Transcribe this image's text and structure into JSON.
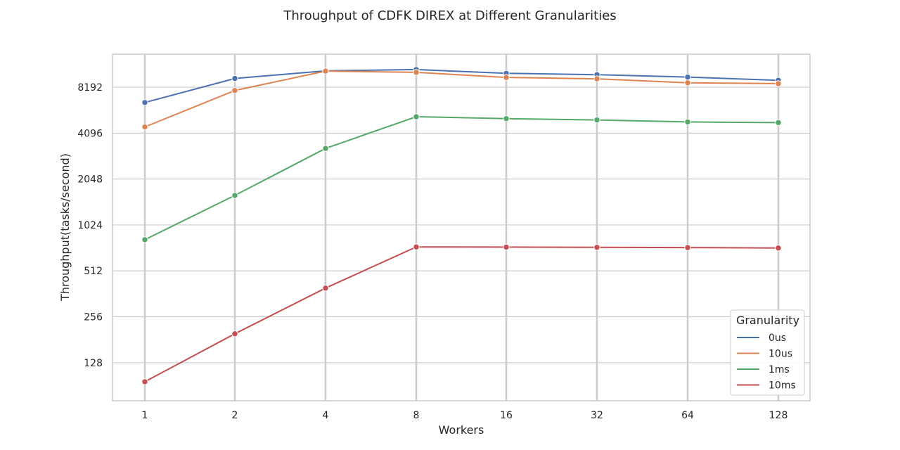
{
  "chart_data": {
    "type": "line",
    "title": "Throughput of CDFK DIREX at Different Granularities",
    "xlabel": "Workers",
    "ylabel": "Throughput(tasks/second)",
    "x": [
      1,
      2,
      4,
      8,
      16,
      32,
      64,
      128
    ],
    "x_tick_labels": [
      "1",
      "2",
      "4",
      "8",
      "16",
      "32",
      "64",
      "128"
    ],
    "y_scale": "log2",
    "y_ticks": [
      128,
      256,
      512,
      1024,
      2048,
      4096,
      8192
    ],
    "y_tick_labels": [
      "128",
      "256",
      "512",
      "1024",
      "2048",
      "4096",
      "8192"
    ],
    "ylim": [
      72,
      13500
    ],
    "grid": true,
    "legend": {
      "title": "Granularity",
      "placement": "lower-right"
    },
    "series": [
      {
        "name": "0us",
        "color": "#4c72b0",
        "values": [
          6500,
          9350,
          10500,
          10700,
          10100,
          9900,
          9550,
          9100
        ]
      },
      {
        "name": "10us",
        "color": "#dd8452",
        "values": [
          4500,
          7800,
          10450,
          10250,
          9500,
          9300,
          8750,
          8650
        ]
      },
      {
        "name": "1ms",
        "color": "#55a868",
        "values": [
          820,
          1600,
          3250,
          5250,
          5100,
          5000,
          4850,
          4800
        ]
      },
      {
        "name": "10ms",
        "color": "#c44e52",
        "values": [
          96,
          198,
          395,
          735,
          733,
          730,
          728,
          723
        ]
      }
    ]
  }
}
